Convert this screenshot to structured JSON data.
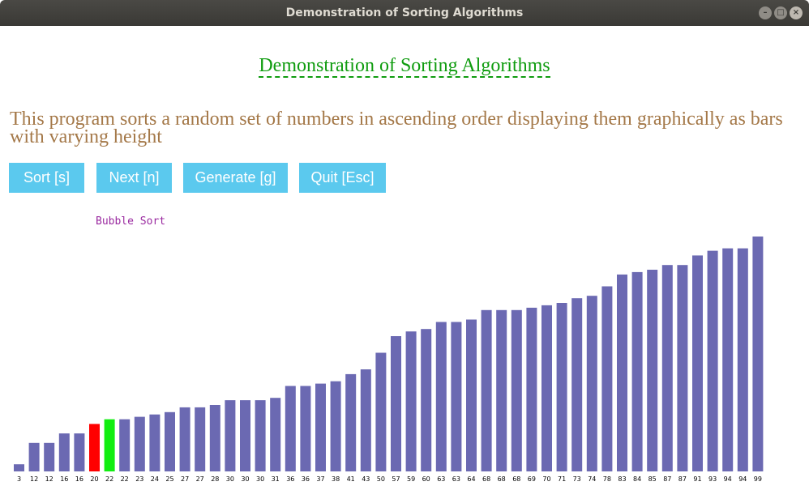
{
  "window": {
    "title": "Demonstration of Sorting Algorithms",
    "controls": [
      "–",
      "□",
      "×"
    ]
  },
  "heading": "Demonstration of Sorting Algorithms",
  "description": "This program sorts a random set of numbers in ascending order displaying them graphically as bars with varying height",
  "buttons": {
    "sort": "Sort [s]",
    "next": "Next [n]",
    "generate": "Generate [g]",
    "quit": "Quit [Esc]"
  },
  "algorithm_label": "Bubble Sort",
  "colors": {
    "bar": "#6b69b2",
    "compare_a": "#ff0000",
    "compare_b": "#11ee11",
    "heading": "#0f9c0f",
    "description": "#a47848",
    "button": "#5bc9ee",
    "algorithm_label": "#9a2aa0"
  },
  "chart_data": {
    "type": "bar",
    "categories": [
      "3",
      "12",
      "12",
      "16",
      "16",
      "20",
      "22",
      "22",
      "23",
      "24",
      "25",
      "27",
      "27",
      "28",
      "30",
      "30",
      "30",
      "31",
      "36",
      "36",
      "37",
      "38",
      "41",
      "43",
      "50",
      "57",
      "59",
      "60",
      "63",
      "63",
      "64",
      "68",
      "68",
      "68",
      "69",
      "70",
      "71",
      "73",
      "74",
      "78",
      "83",
      "84",
      "85",
      "87",
      "87",
      "91",
      "93",
      "94",
      "94",
      "99"
    ],
    "values": [
      3,
      12,
      12,
      16,
      16,
      20,
      22,
      22,
      23,
      24,
      25,
      27,
      27,
      28,
      30,
      30,
      30,
      31,
      36,
      36,
      37,
      38,
      41,
      43,
      50,
      57,
      59,
      60,
      63,
      63,
      64,
      68,
      68,
      68,
      69,
      70,
      71,
      73,
      74,
      78,
      83,
      84,
      85,
      87,
      87,
      91,
      93,
      94,
      94,
      99
    ],
    "highlight": [
      {
        "index": 5,
        "role": "compare_a"
      },
      {
        "index": 6,
        "role": "compare_b"
      }
    ],
    "ylim": [
      0,
      99
    ]
  }
}
